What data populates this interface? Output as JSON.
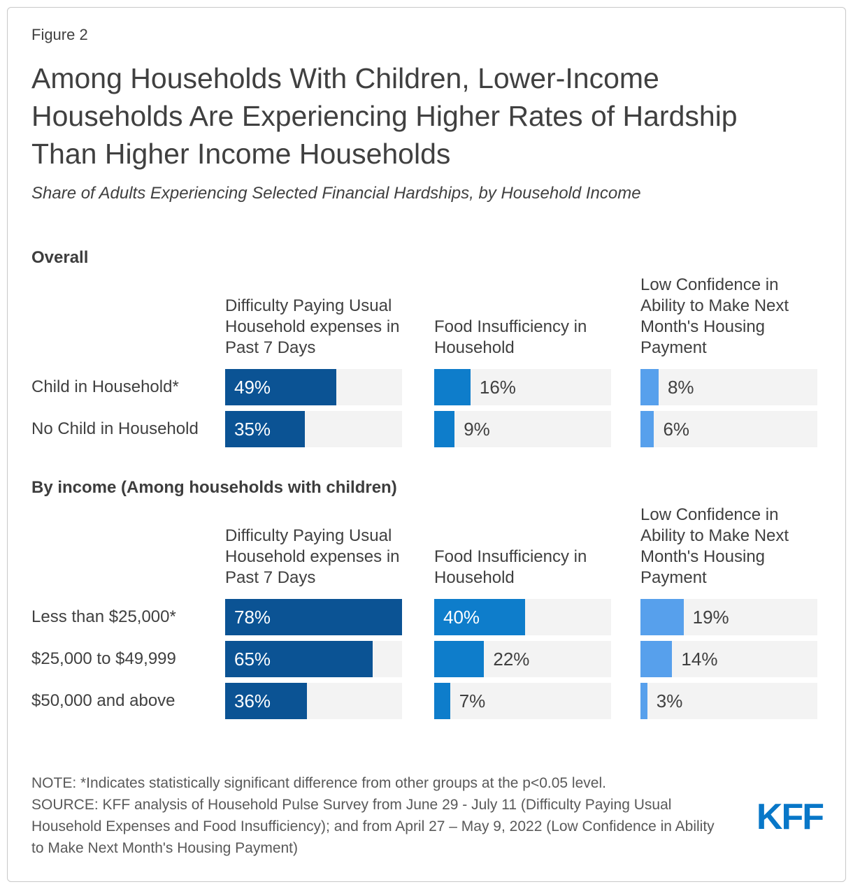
{
  "figure_label": "Figure 2",
  "note": "NOTE: *Indicates statistically significant difference from other groups at the p<0.05 level.",
  "source": "SOURCE: KFF analysis of Household Pulse Survey from June 29 - July 11 (Difficulty Paying Usual Household Expenses and Food Insufficiency); and from April 27 – May 9, 2022 (Low Confidence in Ability to Make Next Month's Housing Payment)",
  "logo_text": "KFF",
  "colors": {
    "bar_dark_blue": "#0B5394",
    "bar_medium_blue": "#0E7DCB",
    "bar_light_blue": "#57A0EC",
    "track_gray": "#F3F3F3",
    "logo_blue": "#0877C8",
    "text_dark": "#404040",
    "text_muted": "#595959",
    "frame_border": "#C8C8C8"
  },
  "chart_data": {
    "type": "bar",
    "title": "Among Households With Children, Lower-Income Households Are Experiencing Higher Rates of Hardship Than Higher Income Households",
    "subtitle": "Share of Adults Experiencing Selected Financial Hardships, by Household Income",
    "unit": "%",
    "orientation": "horizontal",
    "scale_max_percent": 78,
    "inside_label_threshold": 30,
    "grid": "off",
    "legend": "none",
    "columns": [
      {
        "label": "Difficulty Paying Usual Household expenses in Past 7 Days",
        "color": "#0B5394"
      },
      {
        "label": "Food Insufficiency in Household",
        "color": "#0E7DCB"
      },
      {
        "label": "Low Confidence in Ability to Make Next Month's Housing Payment",
        "color": "#57A0EC"
      }
    ],
    "sections": [
      {
        "heading": "Overall",
        "rows": [
          {
            "label": "Child in Household*",
            "values": [
              49,
              16,
              8
            ]
          },
          {
            "label": "No Child in Household",
            "values": [
              35,
              9,
              6
            ]
          }
        ]
      },
      {
        "heading": "By income (Among households with children)",
        "rows": [
          {
            "label": "Less than $25,000*",
            "values": [
              78,
              40,
              19
            ]
          },
          {
            "label": "$25,000 to $49,999",
            "values": [
              65,
              22,
              14
            ]
          },
          {
            "label": "$50,000 and above",
            "values": [
              36,
              7,
              3
            ]
          }
        ]
      }
    ]
  }
}
